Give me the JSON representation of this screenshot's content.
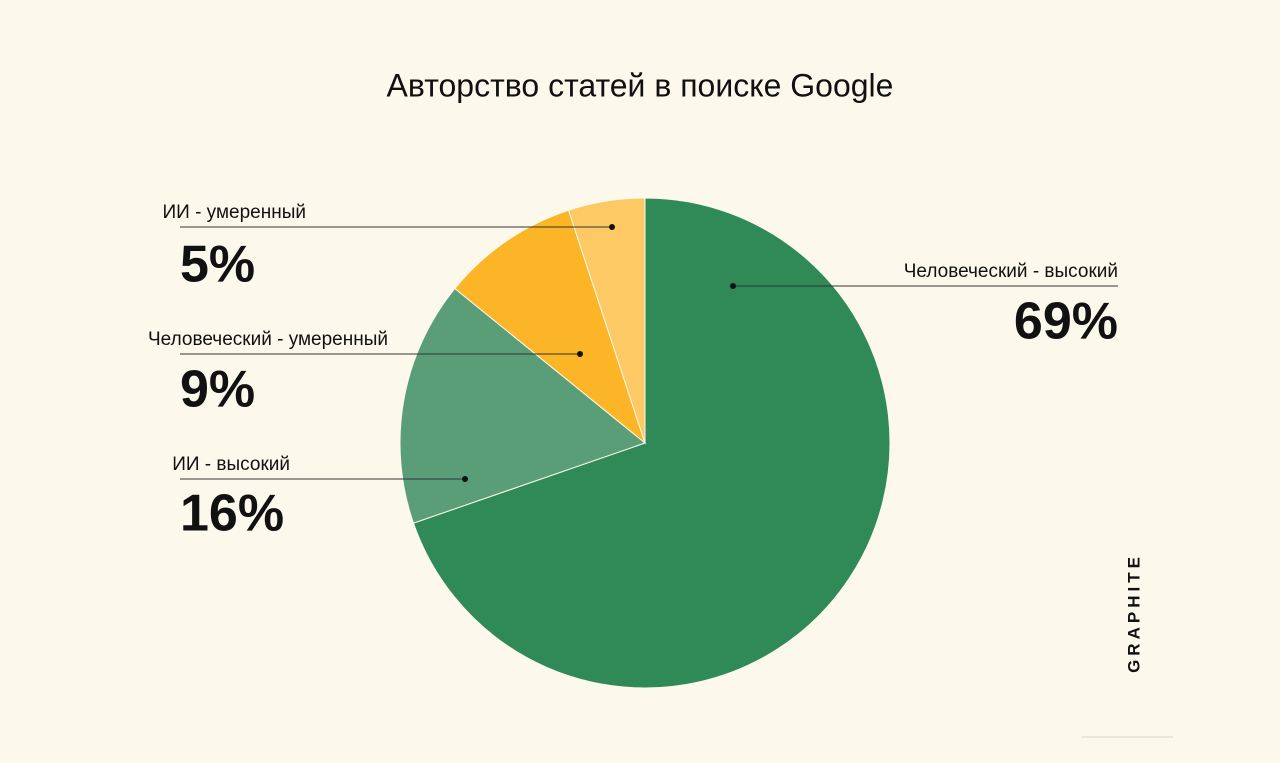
{
  "chart_data": {
    "type": "pie",
    "title": "Авторство статей в поиске Google",
    "categories": [
      "Человеческий - высокий",
      "ИИ - высокий",
      "Человеческий - умеренный",
      "ИИ - умеренный"
    ],
    "values": [
      69,
      16,
      9,
      5
    ],
    "value_labels": [
      "69%",
      "16%",
      "9%",
      "5%"
    ],
    "colors": [
      "#2f8a58",
      "#5a9e77",
      "#fbb526",
      "#fdc964"
    ],
    "start_angle": 0,
    "direction": "clockwise"
  },
  "brand": "GRAPHITE"
}
